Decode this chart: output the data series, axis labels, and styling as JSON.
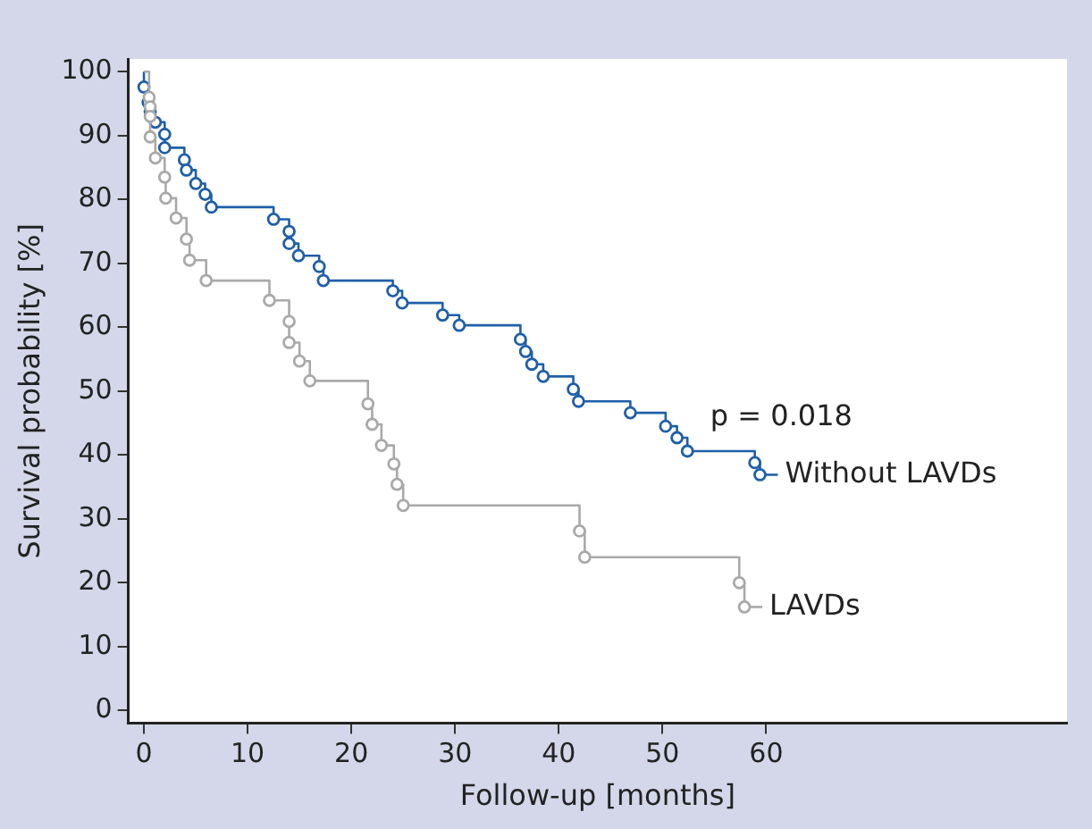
{
  "chart_data": {
    "type": "step",
    "xlabel": "Follow-up [months]",
    "ylabel": "Survival probability [%]",
    "xlim": [
      -1.5,
      89
    ],
    "xticks": [
      0,
      10,
      20,
      30,
      40,
      50,
      60
    ],
    "ylim": [
      -2,
      102
    ],
    "yticks": [
      0,
      10,
      20,
      30,
      40,
      50,
      60,
      70,
      80,
      90,
      100
    ],
    "grid": false,
    "legend": "right",
    "marker": "circle",
    "line_style": "solid",
    "annotations": [
      "p = 0.018"
    ],
    "series": [
      {
        "name": "Without LAVDs",
        "color": "#1f5fa8",
        "x": [
          0,
          0,
          0.4,
          0.6,
          1.1,
          2,
          2,
          3.9,
          4.1,
          5,
          5.9,
          6.5,
          12.5,
          14,
          14,
          14.9,
          16.9,
          17.3,
          24,
          24.9,
          28.8,
          30.4,
          36.3,
          36.8,
          37.4,
          38.5,
          41.4,
          41.9,
          46.9,
          50.3,
          51.4,
          52.4,
          58.9,
          59.4
        ],
        "values": [
          100,
          97.6,
          95.2,
          93.8,
          92.1,
          90.2,
          88.1,
          86.2,
          84.6,
          82.5,
          80.8,
          78.8,
          76.9,
          75,
          73.1,
          71.2,
          69.5,
          67.3,
          65.7,
          63.8,
          61.9,
          60.3,
          58.1,
          56.2,
          54.2,
          52.3,
          50.3,
          48.4,
          46.6,
          44.5,
          42.7,
          40.6,
          38.8,
          36.9
        ]
      },
      {
        "name": "LAVDs",
        "color": "#a9a9a9",
        "x": [
          0,
          0.5,
          0.6,
          0.6,
          0.6,
          1.1,
          2,
          2.1,
          3.1,
          4.1,
          4.4,
          6,
          12.1,
          14,
          14,
          15,
          16,
          21.6,
          22,
          22.9,
          24.1,
          24.4,
          25,
          42,
          42.5,
          57.4,
          57.9
        ],
        "values": [
          100,
          96,
          94.5,
          93,
          89.8,
          86.5,
          83.5,
          80.2,
          77.1,
          73.8,
          70.5,
          67.3,
          64.2,
          60.9,
          57.6,
          54.7,
          51.6,
          48,
          44.8,
          41.5,
          38.6,
          35.4,
          32.1,
          28.1,
          24,
          20,
          16.2
        ]
      }
    ]
  }
}
